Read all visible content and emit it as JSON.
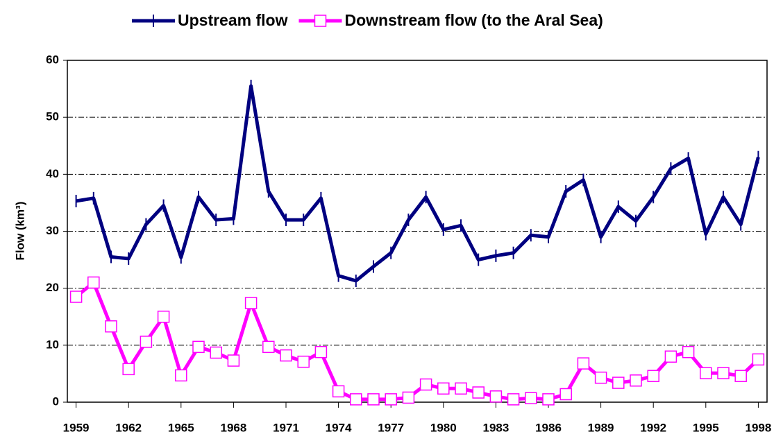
{
  "chart_data": {
    "type": "line",
    "y_label": "Flow (km³)",
    "x": [
      1959,
      1960,
      1961,
      1962,
      1963,
      1964,
      1965,
      1966,
      1967,
      1968,
      1969,
      1970,
      1971,
      1972,
      1973,
      1974,
      1975,
      1976,
      1977,
      1978,
      1979,
      1980,
      1981,
      1982,
      1983,
      1984,
      1985,
      1986,
      1987,
      1988,
      1989,
      1990,
      1991,
      1992,
      1993,
      1994,
      1995,
      1996,
      1997,
      1998
    ],
    "series": [
      {
        "name": "Upstream flow",
        "color": "#000080",
        "marker": "vline",
        "values": [
          35.3,
          35.8,
          25.5,
          25.2,
          31.2,
          34.5,
          25.4,
          36,
          32,
          32.2,
          55.5,
          37,
          32,
          32,
          35.8,
          22.2,
          21.3,
          23.8,
          26.2,
          32,
          36,
          30.3,
          31,
          25,
          25.7,
          26.2,
          29.3,
          29,
          37,
          39,
          29,
          34.3,
          31.8,
          36,
          41,
          42.8,
          29.5,
          36,
          31.2,
          43
        ]
      },
      {
        "name": "Downstream flow (to the Aral Sea)",
        "color": "#ff00ff",
        "marker": "square",
        "values": [
          18.5,
          21,
          13.3,
          5.8,
          10.6,
          15,
          4.7,
          9.7,
          8.7,
          7.3,
          17.4,
          9.7,
          8.2,
          7.1,
          8.8,
          1.9,
          0.5,
          0.5,
          0.5,
          0.8,
          3.1,
          2.4,
          2.4,
          1.7,
          1.0,
          0.5,
          0.7,
          0.5,
          1.4,
          6.8,
          4.3,
          3.4,
          3.8,
          4.6,
          8.0,
          8.8,
          5.1,
          5.1,
          4.6,
          7.5
        ]
      }
    ],
    "xlim": [
      1958.5,
      1998.5
    ],
    "xticks": [
      1959,
      1962,
      1965,
      1968,
      1971,
      1974,
      1977,
      1980,
      1983,
      1986,
      1989,
      1992,
      1995,
      1998
    ],
    "ylim": [
      0,
      60
    ],
    "yticks": [
      0,
      10,
      20,
      30,
      40,
      50,
      60
    ],
    "grid": true,
    "legend": "top"
  }
}
